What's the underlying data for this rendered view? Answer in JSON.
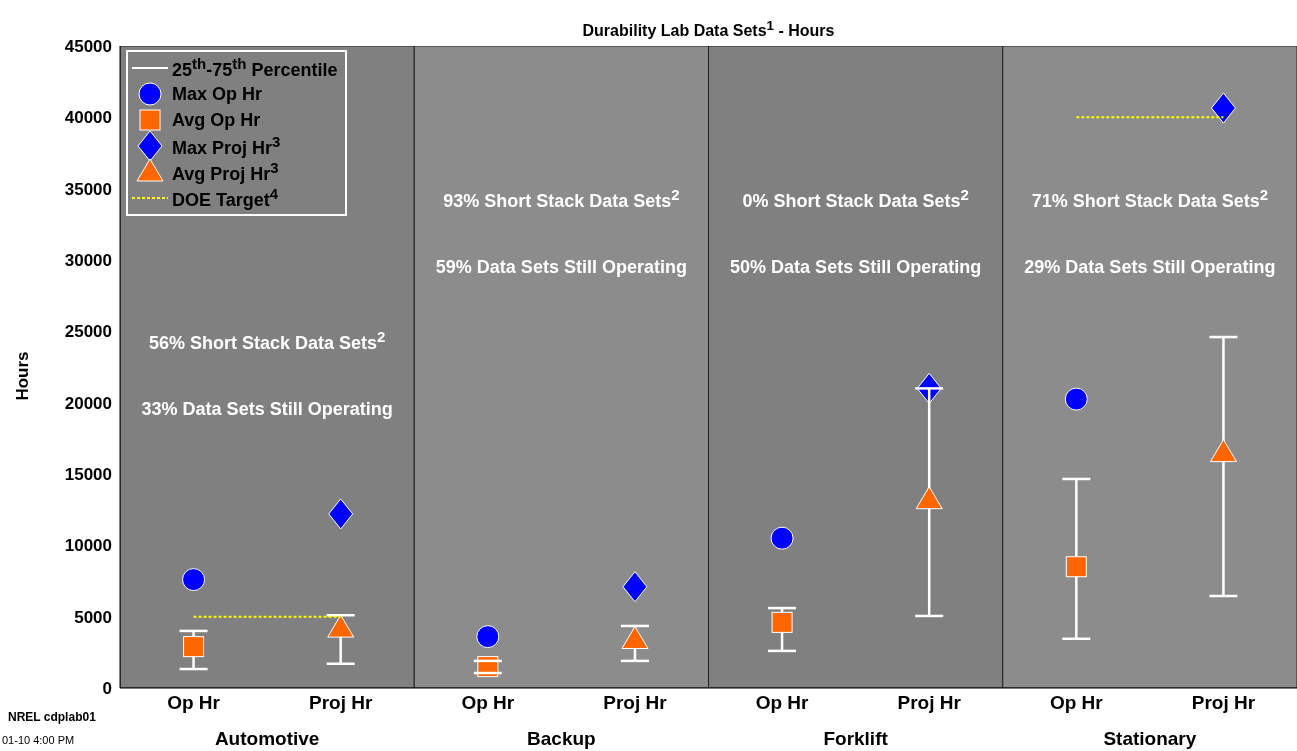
{
  "chart_data": {
    "type": "scatter",
    "title": "Durability Lab Data Sets$^{1}$ - Hours",
    "ylabel": "Hours",
    "categories": [
      "Op Hr",
      "Proj Hr",
      "Op Hr",
      "Proj Hr",
      "Op Hr",
      "Proj Hr",
      "Op Hr",
      "Proj Hr"
    ],
    "ylim": [
      0,
      45000
    ],
    "yticks": [
      0,
      5000,
      10000,
      15000,
      20000,
      25000,
      30000,
      35000,
      40000,
      45000
    ],
    "legend": "top left",
    "series": [
      {
        "name": "25$^{th}$-75$^{th}$ Percentile",
        "type": "line",
        "color": "#ffffff",
        "line_style": "solid",
        "values": [
          null,
          null,
          null,
          null,
          null,
          null,
          null,
          null
        ]
      },
      {
        "name": "Max Op Hr",
        "marker": "circle",
        "color": "#0000ff",
        "values": [
          7600,
          null,
          3600,
          null,
          10500,
          null,
          20250,
          null
        ]
      },
      {
        "name": "Avg Op Hr",
        "marker": "square",
        "color": "#ff6600",
        "values": [
          2900,
          null,
          1500,
          null,
          4600,
          null,
          8500,
          null
        ],
        "errors": [
          [
            1330,
            4000
          ],
          null,
          [
            1050,
            1900
          ],
          null,
          [
            2600,
            5600
          ],
          null,
          [
            3450,
            14650
          ],
          null
        ]
      },
      {
        "name": "Max Proj Hr$^{3}$",
        "marker": "diamond",
        "color": "#0000ff",
        "values": [
          null,
          12200,
          null,
          7100,
          null,
          21000,
          null,
          40650
        ]
      },
      {
        "name": "Avg Proj Hr$^{3}$",
        "marker": "triangle",
        "color": "#ff6600",
        "values": [
          null,
          4200,
          null,
          3400,
          null,
          13200,
          null,
          16500
        ],
        "errors": [
          null,
          [
            1700,
            5100
          ],
          null,
          [
            1900,
            4350
          ],
          null,
          [
            5050,
            21000
          ],
          null,
          [
            6450,
            24600
          ]
        ]
      },
      {
        "name": "DOE Target$^{4}$",
        "type": "line",
        "color": "#ffff00",
        "line_style": "dotted",
        "values": [
          5000,
          5000,
          null,
          null,
          null,
          null,
          40000,
          40000
        ]
      }
    ],
    "annotations": [
      "56% Short Stack Data Sets$^{2}$",
      "33% Data Sets Still Operating",
      "93% Short Stack Data Sets$^{2}$",
      "59% Data Sets Still Operating",
      "0% Short Stack Data Sets$^{2}$",
      "50% Data Sets Still Operating",
      "71% Short Stack Data Sets$^{2}$",
      "29% Data Sets Still Operating",
      "Automotive",
      "Backup",
      "Forklift",
      "Stationary",
      "NREL cdplab01",
      "01-10  4:00 PM"
    ]
  }
}
